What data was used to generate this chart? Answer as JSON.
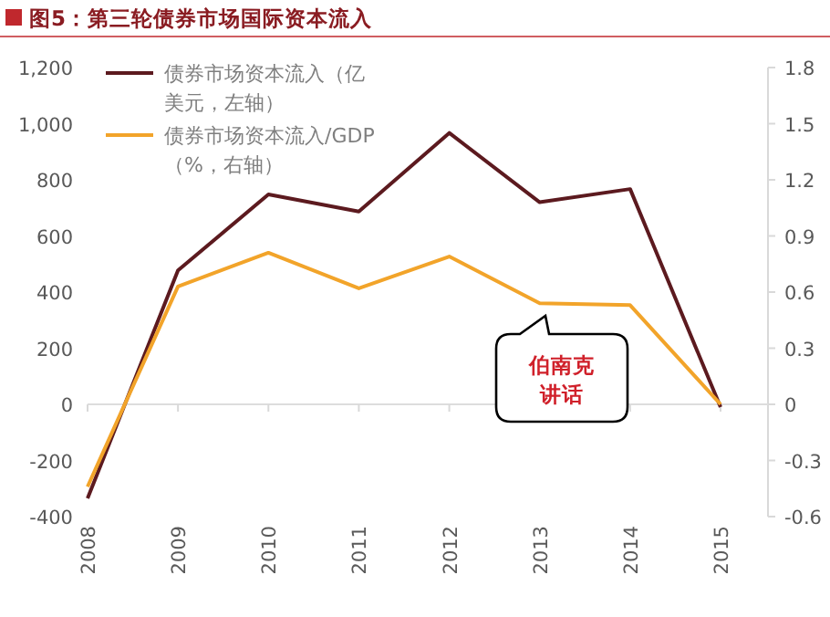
{
  "chart_data": {
    "type": "line",
    "title": "图5：第三轮债券市场国际资本流入",
    "categories": [
      "2008",
      "2009",
      "2010",
      "2011",
      "2012",
      "2013",
      "2014",
      "2015"
    ],
    "series": [
      {
        "name": "债券市场资本流入（亿美元，左轴）",
        "color": "#5c1a1f",
        "values": [
          -335,
          477,
          748,
          687,
          967,
          720,
          767,
          -10
        ]
      },
      {
        "name": "债券市场资本流入/GDP（%，右轴）",
        "color": "#f2a42a",
        "axis": "y2",
        "values": [
          -0.44,
          0.63,
          0.81,
          0.62,
          0.79,
          0.54,
          0.53,
          0
        ]
      }
    ],
    "ylim": [
      -400,
      1200
    ],
    "yticks": [
      {
        "value": -400,
        "label": "-400"
      },
      {
        "value": -200,
        "label": "-200"
      },
      0,
      {
        "value": 200,
        "label": "200"
      },
      {
        "value": 400,
        "label": "400"
      },
      {
        "value": 600,
        "label": "600"
      },
      {
        "value": 800,
        "label": "800"
      },
      {
        "value": 1000,
        "label": "1,000"
      },
      {
        "value": 1200,
        "label": "1,200"
      }
    ],
    "y2lim": [
      -0.6,
      1.8
    ],
    "y2ticks": [
      -0.6,
      -0.3,
      0,
      0.3,
      0.6,
      0.9,
      1.2,
      1.5,
      1.8
    ],
    "annotations": [
      "伯南克讲话"
    ],
    "legend": "top left",
    "marker": "none",
    "line_style": "solid"
  }
}
